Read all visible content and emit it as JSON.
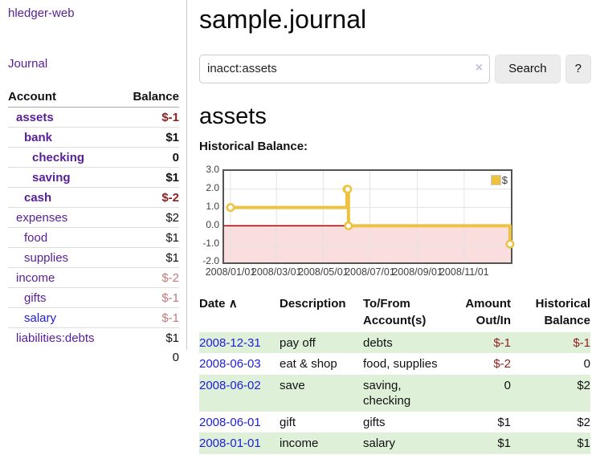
{
  "sidebar": {
    "brand": "hledger-web",
    "journal_link": "Journal",
    "accounts_table": {
      "header": {
        "account": "Account",
        "balance": "Balance"
      },
      "rows": [
        {
          "name": "assets",
          "depth": 1,
          "bold": true,
          "balance": "$-1",
          "neg": "strong"
        },
        {
          "name": "bank",
          "depth": 2,
          "bold": true,
          "balance": "$1"
        },
        {
          "name": "checking",
          "depth": 3,
          "bold": true,
          "balance": "0"
        },
        {
          "name": "saving",
          "depth": 3,
          "bold": true,
          "balance": "$1"
        },
        {
          "name": "cash",
          "depth": 2,
          "bold": true,
          "balance": "$-2",
          "neg": "strong"
        },
        {
          "name": "expenses",
          "depth": 1,
          "bold": false,
          "balance": "$2"
        },
        {
          "name": "food",
          "depth": 2,
          "bold": false,
          "balance": "$1"
        },
        {
          "name": "supplies",
          "depth": 2,
          "bold": false,
          "balance": "$1"
        },
        {
          "name": "income",
          "depth": 1,
          "bold": false,
          "balance": "$-2",
          "neg": "soft"
        },
        {
          "name": "gifts",
          "depth": 2,
          "bold": false,
          "balance": "$-1",
          "neg": "soft"
        },
        {
          "name": "salary",
          "depth": 2,
          "bold": false,
          "balance": "$-1",
          "neg": "soft",
          "link_color": "blue"
        },
        {
          "name": "liabilities:debts",
          "depth": 1,
          "bold": false,
          "balance": "$1"
        }
      ],
      "total": "0"
    }
  },
  "main": {
    "title": "sample.journal",
    "search": {
      "value": "inacct:assets",
      "clear_icon": "×",
      "button_label": "Search",
      "help_label": "?"
    },
    "account_heading": "assets",
    "chart_label": "Historical Balance:"
  },
  "chart_data": {
    "type": "line",
    "title": "Historical Balance:",
    "legend": "$",
    "legend_position": "top-right",
    "grid": true,
    "ylim": [
      -2.0,
      3.0
    ],
    "xlim": [
      "2008-01-01",
      "2008-12-31"
    ],
    "series": [
      {
        "name": "$",
        "color": "#edc240",
        "step": true,
        "points": [
          {
            "x": "2008-01-01",
            "y": 1
          },
          {
            "x": "2008-06-01",
            "y": 2
          },
          {
            "x": "2008-06-02",
            "y": 2
          },
          {
            "x": "2008-06-03",
            "y": 0
          },
          {
            "x": "2008-12-31",
            "y": -1
          }
        ]
      }
    ],
    "x_ticks": [
      {
        "date": "2008-01-01",
        "label": "2008/01/01"
      },
      {
        "date": "2008-03-01",
        "label": "2008/03/01"
      },
      {
        "date": "2008-05-01",
        "label": "2008/05/01"
      },
      {
        "date": "2008-07-01",
        "label": "2008/07/01"
      },
      {
        "date": "2008-09-01",
        "label": "2008/09/01"
      },
      {
        "date": "2008-11-01",
        "label": "2008/11/01"
      }
    ],
    "y_ticks": [
      {
        "v": 3,
        "label": "3.0"
      },
      {
        "v": 2,
        "label": "2.0"
      },
      {
        "v": 1,
        "label": "1.0"
      },
      {
        "v": 0,
        "label": "0.0"
      },
      {
        "v": -1,
        "label": "-1.0"
      },
      {
        "v": -2,
        "label": "-2.0"
      }
    ],
    "negative_fill": "#fadddd",
    "zero_line_color": "#a40000"
  },
  "register": {
    "headers": {
      "date": "Date",
      "sort_icon": "∧",
      "description": "Description",
      "tofrom": "To/From Account(s)",
      "amount": "Amount Out/In",
      "balance": "Historical Balance"
    },
    "rows": [
      {
        "date": "2008-12-31",
        "description": "pay off",
        "accounts": "debts",
        "amount": "$-1",
        "amount_neg": true,
        "balance": "$-1",
        "balance_neg": true,
        "shaded": true
      },
      {
        "date": "2008-06-03",
        "description": "eat & shop",
        "accounts": "food, supplies",
        "amount": "$-2",
        "amount_neg": true,
        "balance": "0",
        "balance_neg": false,
        "shaded": false
      },
      {
        "date": "2008-06-02",
        "description": "save",
        "accounts": "saving, checking",
        "amount": "0",
        "amount_neg": false,
        "balance": "$2",
        "balance_neg": false,
        "shaded": true
      },
      {
        "date": "2008-06-01",
        "description": "gift",
        "accounts": "gifts",
        "amount": "$1",
        "amount_neg": false,
        "balance": "$2",
        "balance_neg": false,
        "shaded": false
      },
      {
        "date": "2008-01-01",
        "description": "income",
        "accounts": "salary",
        "amount": "$1",
        "amount_neg": false,
        "balance": "$1",
        "balance_neg": false,
        "shaded": true
      }
    ]
  },
  "colors": {
    "link_purple": "#571f97",
    "link_blue": "#2020d8",
    "negative_strong": "#8e1f1f",
    "negative_soft": "#c27878",
    "row_shade_green": "#dff0d8",
    "series_gold": "#edc240",
    "chart_border": "#545454",
    "gridline": "#e3e3e3"
  }
}
